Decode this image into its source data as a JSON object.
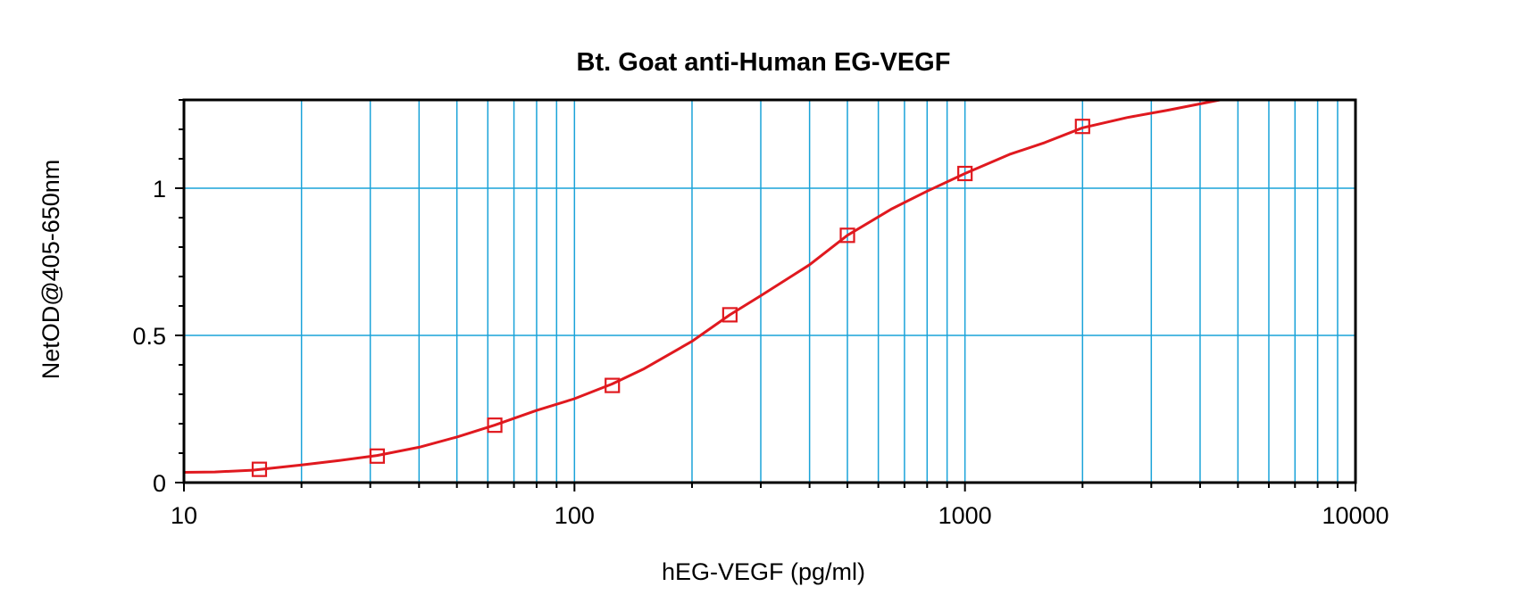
{
  "chart_data": {
    "type": "scatter",
    "title": "Bt. Goat anti-Human EG-VEGF",
    "xlabel": "hEG-VEGF (pg/ml)",
    "ylabel": "NetOD@405-650nm",
    "x_scale": "log",
    "xlim": [
      10,
      10000
    ],
    "ylim": [
      0,
      1.3
    ],
    "x_ticks": [
      {
        "value": 10,
        "label": "10"
      },
      {
        "value": 100,
        "label": "100"
      },
      {
        "value": 1000,
        "label": "1000"
      },
      {
        "value": 10000,
        "label": "10000"
      }
    ],
    "y_ticks": [
      {
        "value": 0,
        "label": "0"
      },
      {
        "value": 0.5,
        "label": "0.5"
      },
      {
        "value": 1,
        "label": "1"
      }
    ],
    "y_minor_step": 0.1,
    "grid": true,
    "series": [
      {
        "marker": "square",
        "color": "#e0191f",
        "x": [
          15.6,
          31.25,
          62.5,
          125,
          250,
          500,
          1000,
          2000
        ],
        "y": [
          0.045,
          0.09,
          0.195,
          0.33,
          0.57,
          0.84,
          1.05,
          1.21
        ]
      }
    ],
    "fit_curve": {
      "color": "#e0191f",
      "x": [
        10,
        12,
        15,
        20,
        25,
        31.25,
        40,
        50,
        62.5,
        80,
        100,
        125,
        150,
        200,
        250,
        300,
        400,
        500,
        650,
        800,
        1000,
        1300,
        1600,
        2000,
        2600,
        3300,
        4500
      ],
      "y": [
        0.035,
        0.036,
        0.042,
        0.06,
        0.075,
        0.092,
        0.12,
        0.155,
        0.195,
        0.245,
        0.285,
        0.335,
        0.385,
        0.48,
        0.57,
        0.635,
        0.74,
        0.84,
        0.93,
        0.99,
        1.05,
        1.115,
        1.155,
        1.205,
        1.24,
        1.265,
        1.3
      ]
    },
    "colors": {
      "grid": "#1aa3d9",
      "axis": "#000000",
      "series": "#e0191f"
    }
  }
}
